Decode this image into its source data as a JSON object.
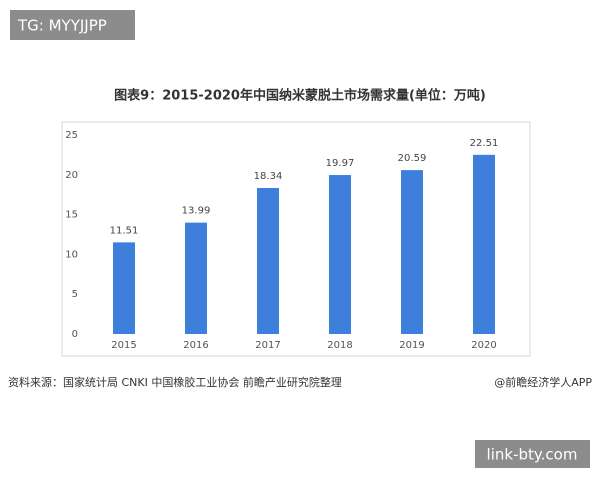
{
  "tag": "TG: MYYJJPP",
  "chart_data": {
    "type": "bar",
    "title": "图表9：2015-2020年中国纳米蒙脱土市场需求量(单位：万吨)",
    "categories": [
      "2015",
      "2016",
      "2017",
      "2018",
      "2019",
      "2020"
    ],
    "values": [
      11.51,
      13.99,
      18.34,
      19.97,
      20.59,
      22.51
    ],
    "color": "#3f7fdc",
    "ylim": [
      0,
      25
    ],
    "yticks": [
      0,
      5,
      10,
      15,
      20,
      25
    ],
    "grid": false
  },
  "source": "资料来源：国家统计局 CNKI 中国橡胶工业协会 前瞻产业研究院整理",
  "credit": "@前瞻经济学人APP",
  "site": "link-bty.com"
}
